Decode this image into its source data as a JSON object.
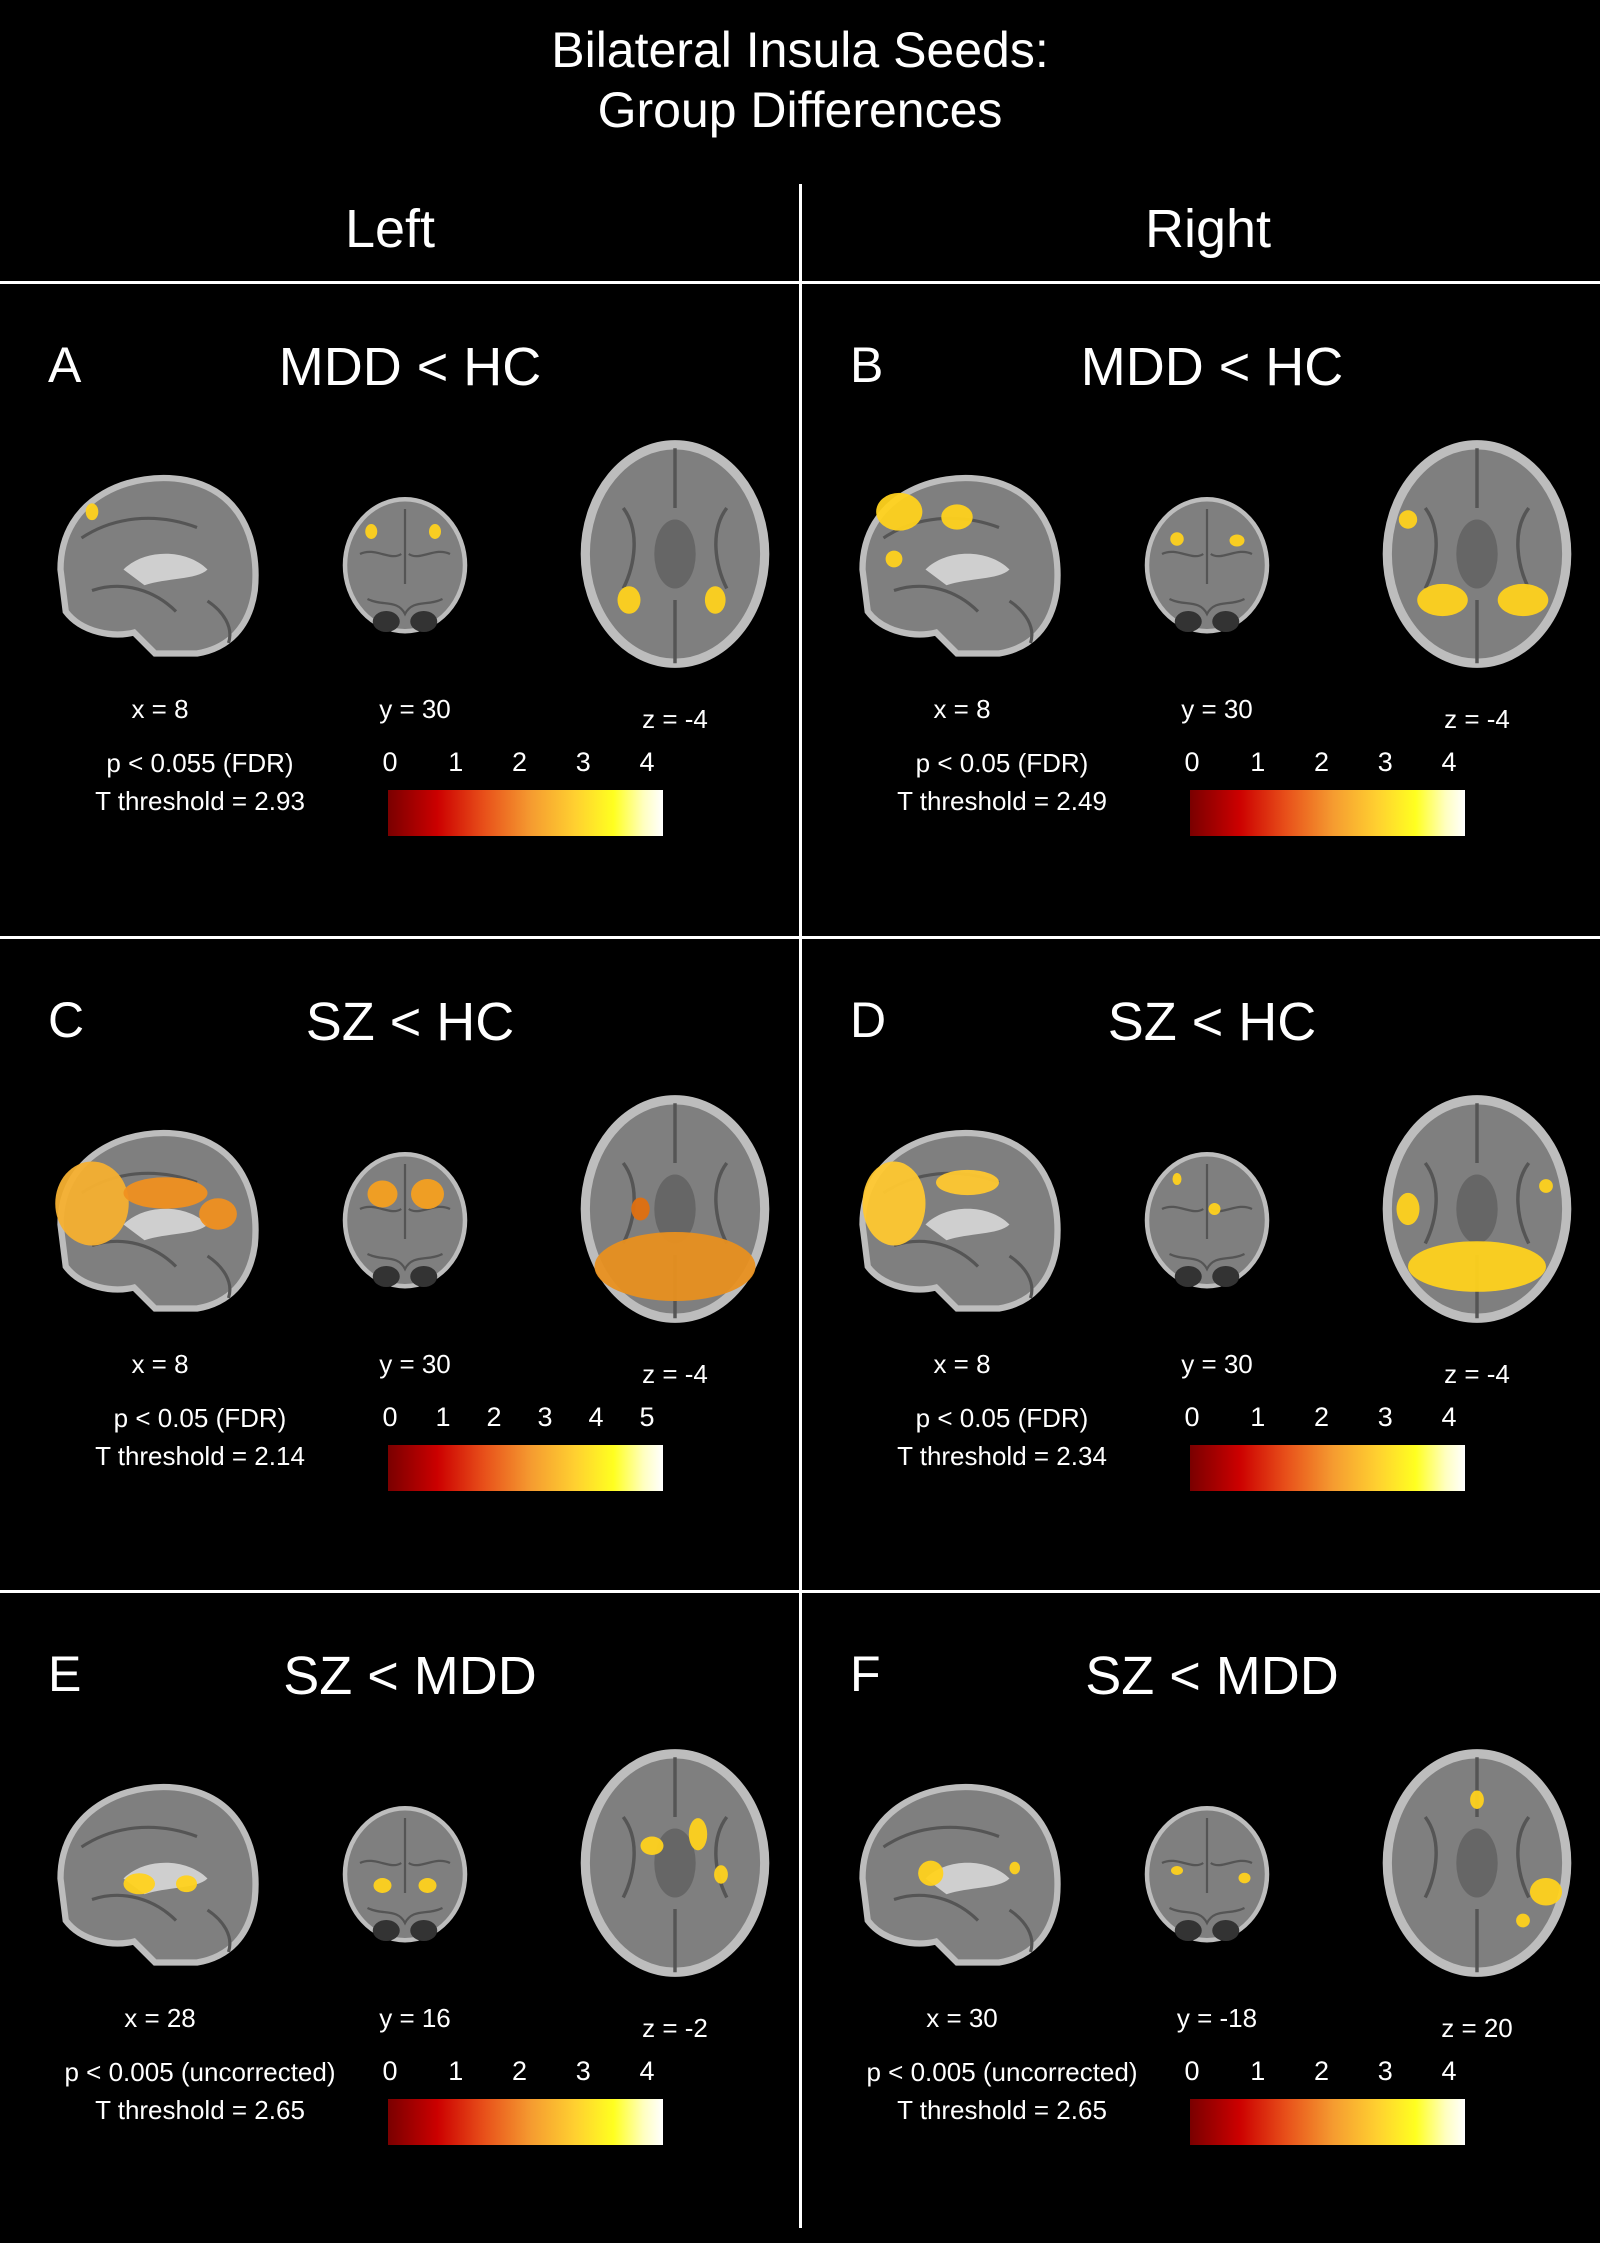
{
  "figure": {
    "title_line1": "Bilateral Insula Seeds:",
    "title_line2": "Group Differences",
    "left_header": "Left",
    "right_header": "Right"
  },
  "panels": [
    {
      "letter": "A",
      "title": "MDD < HC",
      "coords": [
        "x = 8",
        "y = 30",
        "z = -4"
      ],
      "p_text": "p < 0.055 (FDR)",
      "t_text": "T threshold = 2.93",
      "ticks": [
        "0",
        "1",
        "2",
        "3",
        "4"
      ],
      "t_threshold": 2.93
    },
    {
      "letter": "B",
      "title": "MDD < HC",
      "coords": [
        "x = 8",
        "y = 30",
        "z = -4"
      ],
      "p_text": "p < 0.05 (FDR)",
      "t_text": "T threshold = 2.49",
      "ticks": [
        "0",
        "1",
        "2",
        "3",
        "4"
      ],
      "t_threshold": 2.49
    },
    {
      "letter": "C",
      "title": "SZ < HC",
      "coords": [
        "x = 8",
        "y = 30",
        "z = -4"
      ],
      "p_text": "p < 0.05 (FDR)",
      "t_text": "T threshold = 2.14",
      "ticks": [
        "0",
        "1",
        "2",
        "3",
        "4",
        "5"
      ],
      "t_threshold": 2.14
    },
    {
      "letter": "D",
      "title": "SZ < HC",
      "coords": [
        "x = 8",
        "y = 30",
        "z = -4"
      ],
      "p_text": "p < 0.05 (FDR)",
      "t_text": "T threshold = 2.34",
      "ticks": [
        "0",
        "1",
        "2",
        "3",
        "4"
      ],
      "t_threshold": 2.34
    },
    {
      "letter": "E",
      "title": "SZ < MDD",
      "coords": [
        "x = 28",
        "y = 16",
        "z = -2"
      ],
      "p_text": "p < 0.005 (uncorrected)",
      "t_text": "T threshold = 2.65",
      "ticks": [
        "0",
        "1",
        "2",
        "3",
        "4"
      ],
      "t_threshold": 2.65
    },
    {
      "letter": "F",
      "title": "SZ < MDD",
      "coords": [
        "x = 30",
        "y = -18",
        "z = 20"
      ],
      "p_text": "p < 0.005 (uncorrected)",
      "t_text": "T threshold = 2.65",
      "ticks": [
        "0",
        "1",
        "2",
        "3",
        "4"
      ],
      "t_threshold": 2.65
    }
  ],
  "colors": {
    "background": "#000000",
    "text": "#ffffff",
    "brain": "#8a8a8a",
    "activation": "#ffd21e"
  }
}
